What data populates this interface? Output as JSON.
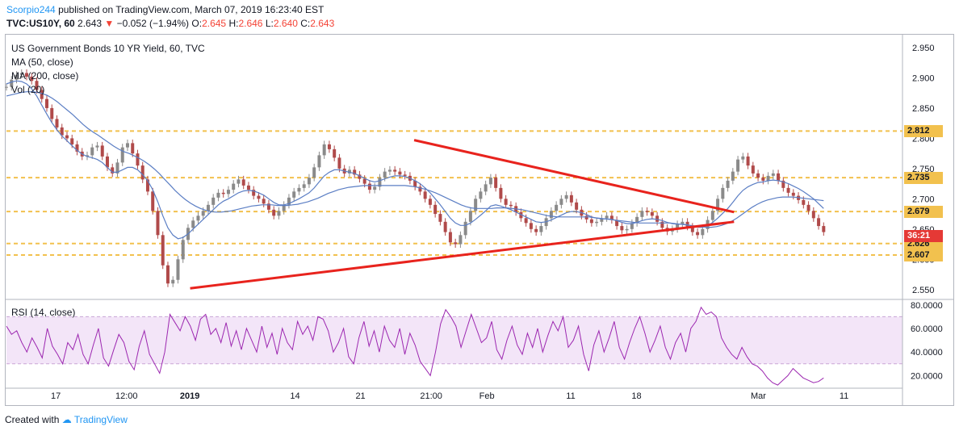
{
  "header": {
    "publisher": "Scorpio244",
    "published_text": "published on TradingView.com, March 07, 2019 16:23:40 EST",
    "symbol": "TVC:US10Y, 60",
    "last": "2.643",
    "change_arrow": "▼",
    "change": "−0.052 (−1.94%)",
    "ohlc": {
      "o_label": "O:",
      "o": "2.645",
      "h_label": "H:",
      "h": "2.646",
      "l_label": "L:",
      "l": "2.640",
      "c_label": "C:",
      "c": "2.643"
    }
  },
  "legend": {
    "title": "US Government Bonds 10 YR Yield, 60, TVC",
    "ma50": "MA (50, close)",
    "ma200": "MA (200, close)",
    "vol": "Vol (20)",
    "rsi": "RSI (14, close)"
  },
  "footer": {
    "created_with": "Created with",
    "brand": "TradingView"
  },
  "colors": {
    "candle_up": "#8a8a8a",
    "candle_down": "#b04a4a",
    "ma": "#5b7ec4",
    "levels": "#f2c14e",
    "trendline": "#e8231d",
    "rsi_line": "#9c27b0",
    "rsi_band": "#f3e5f8",
    "price_tag": "#e53935"
  },
  "chart_data": [
    {
      "type": "line",
      "title": "US Government Bonds 10 YR Yield, 60, TVC",
      "y_ticks": [
        "2.950",
        "2.900",
        "2.850",
        "2.800",
        "2.750",
        "2.700",
        "2.650",
        "2.600",
        "2.550"
      ],
      "ylim": [
        2.535,
        2.97
      ],
      "x_ticks": [
        "17",
        "12:00",
        "2019",
        "14",
        "21",
        "21:00",
        "Feb",
        "11",
        "18",
        "Mar",
        "11"
      ],
      "price_levels": [
        {
          "label": "2.812",
          "value": 2.812
        },
        {
          "label": "2.735",
          "value": 2.735
        },
        {
          "label": "2.679",
          "value": 2.679
        },
        {
          "label": "2.626",
          "value": 2.626
        },
        {
          "label": "2.607",
          "value": 2.607
        }
      ],
      "last_price_tag": "36:21",
      "trendlines": [
        {
          "name": "upper",
          "from": {
            "t": 0.455,
            "y": 2.797
          },
          "to": {
            "t": 0.812,
            "y": 2.678
          }
        },
        {
          "name": "lower",
          "from": {
            "t": 0.205,
            "y": 2.552
          },
          "to": {
            "t": 0.812,
            "y": 2.662
          }
        }
      ],
      "series": [
        {
          "name": "US10Y",
          "values": [
            2.885,
            2.897,
            2.905,
            2.908,
            2.902,
            2.895,
            2.88,
            2.865,
            2.85,
            2.832,
            2.818,
            2.805,
            2.8,
            2.79,
            2.778,
            2.77,
            2.772,
            2.785,
            2.788,
            2.77,
            2.752,
            2.742,
            2.76,
            2.785,
            2.792,
            2.775,
            2.755,
            2.732,
            2.712,
            2.68,
            2.64,
            2.59,
            2.56,
            2.566,
            2.6,
            2.632,
            2.652,
            2.664,
            2.672,
            2.68,
            2.69,
            2.702,
            2.71,
            2.708,
            2.715,
            2.725,
            2.732,
            2.722,
            2.715,
            2.705,
            2.7,
            2.692,
            2.682,
            2.672,
            2.68,
            2.69,
            2.702,
            2.712,
            2.718,
            2.724,
            2.735,
            2.752,
            2.772,
            2.79,
            2.782,
            2.768,
            2.75,
            2.742,
            2.748,
            2.74,
            2.733,
            2.725,
            2.715,
            2.72,
            2.735,
            2.745,
            2.748,
            2.745,
            2.74,
            2.738,
            2.73,
            2.72,
            2.712,
            2.7,
            2.69,
            2.675,
            2.662,
            2.645,
            2.628,
            2.625,
            2.64,
            2.662,
            2.68,
            2.7,
            2.712,
            2.724,
            2.735,
            2.718,
            2.7,
            2.69,
            2.688,
            2.678,
            2.668,
            2.66,
            2.65,
            2.645,
            2.655,
            2.668,
            2.68,
            2.69,
            2.7,
            2.706,
            2.694,
            2.682,
            2.672,
            2.666,
            2.66,
            2.662,
            2.668,
            2.672,
            2.665,
            2.655,
            2.648,
            2.65,
            2.66,
            2.67,
            2.68,
            2.678,
            2.672,
            2.662,
            2.652,
            2.646,
            2.65,
            2.658,
            2.662,
            2.654,
            2.645,
            2.64,
            2.65,
            2.665,
            2.68,
            2.7,
            2.718,
            2.73,
            2.745,
            2.765,
            2.77,
            2.755,
            2.742,
            2.735,
            2.73,
            2.738,
            2.742,
            2.73,
            2.718,
            2.71,
            2.705,
            2.698,
            2.69,
            2.68,
            2.668,
            2.655,
            2.645
          ]
        },
        {
          "name": "MA (50, close)",
          "values": [
            2.89,
            2.893,
            2.895,
            2.894,
            2.89,
            2.882,
            2.87,
            2.855,
            2.84,
            2.826,
            2.814,
            2.804,
            2.796,
            2.788,
            2.78,
            2.774,
            2.77,
            2.768,
            2.765,
            2.76,
            2.752,
            2.744,
            2.744,
            2.748,
            2.752,
            2.752,
            2.748,
            2.74,
            2.73,
            2.715,
            2.695,
            2.672,
            2.652,
            2.64,
            2.634,
            2.636,
            2.642,
            2.65,
            2.658,
            2.666,
            2.674,
            2.682,
            2.69,
            2.696,
            2.7,
            2.705,
            2.71,
            2.713,
            2.714,
            2.713,
            2.71,
            2.706,
            2.7,
            2.694,
            2.69,
            2.69,
            2.692,
            2.696,
            2.7,
            2.705,
            2.71,
            2.718,
            2.728,
            2.738,
            2.744,
            2.748,
            2.748,
            2.746,
            2.744,
            2.742,
            2.738,
            2.734,
            2.73,
            2.728,
            2.73,
            2.733,
            2.736,
            2.738,
            2.738,
            2.737,
            2.734,
            2.73,
            2.725,
            2.718,
            2.71,
            2.7,
            2.69,
            2.679,
            2.668,
            2.66,
            2.656,
            2.656,
            2.66,
            2.666,
            2.673,
            2.68,
            2.688,
            2.69,
            2.688,
            2.685,
            2.682,
            2.678,
            2.674,
            2.67,
            2.666,
            2.662,
            2.661,
            2.662,
            2.665,
            2.669,
            2.673,
            2.677,
            2.679,
            2.679,
            2.677,
            2.674,
            2.67,
            2.668,
            2.667,
            2.667,
            2.666,
            2.664,
            2.661,
            2.659,
            2.659,
            2.661,
            2.664,
            2.666,
            2.667,
            2.666,
            2.664,
            2.661,
            2.659,
            2.658,
            2.658,
            2.657,
            2.655,
            2.653,
            2.653,
            2.656,
            2.661,
            2.668,
            2.676,
            2.684,
            2.694,
            2.705,
            2.714,
            2.72,
            2.724,
            2.727,
            2.728,
            2.73,
            2.731,
            2.73,
            2.728,
            2.725,
            2.721,
            2.717,
            2.712,
            2.706,
            2.7,
            2.692,
            2.684
          ]
        },
        {
          "name": "MA (200, close)",
          "values": [
            2.87,
            2.872,
            2.874,
            2.876,
            2.877,
            2.877,
            2.876,
            2.874,
            2.871,
            2.866,
            2.86,
            2.853,
            2.846,
            2.839,
            2.831,
            2.823,
            2.816,
            2.81,
            2.805,
            2.799,
            2.793,
            2.787,
            2.782,
            2.778,
            2.775,
            2.771,
            2.767,
            2.762,
            2.756,
            2.749,
            2.741,
            2.732,
            2.723,
            2.714,
            2.706,
            2.699,
            2.693,
            2.688,
            2.684,
            2.681,
            2.679,
            2.678,
            2.678,
            2.679,
            2.68,
            2.682,
            2.684,
            2.686,
            2.688,
            2.689,
            2.69,
            2.69,
            2.69,
            2.689,
            2.689,
            2.689,
            2.69,
            2.691,
            2.693,
            2.695,
            2.698,
            2.701,
            2.705,
            2.709,
            2.712,
            2.715,
            2.717,
            2.719,
            2.72,
            2.721,
            2.722,
            2.722,
            2.722,
            2.722,
            2.722,
            2.722,
            2.722,
            2.722,
            2.722,
            2.721,
            2.72,
            2.718,
            2.716,
            2.713,
            2.71,
            2.706,
            2.702,
            2.698,
            2.694,
            2.69,
            2.687,
            2.685,
            2.684,
            2.684,
            2.684,
            2.684,
            2.685,
            2.685,
            2.685,
            2.684,
            2.683,
            2.682,
            2.68,
            2.678,
            2.676,
            2.674,
            2.672,
            2.671,
            2.67,
            2.67,
            2.67,
            2.67,
            2.67,
            2.67,
            2.67,
            2.669,
            2.668,
            2.667,
            2.666,
            2.665,
            2.664,
            2.663,
            2.662,
            2.661,
            2.66,
            2.66,
            2.66,
            2.66,
            2.66,
            2.66,
            2.66,
            2.659,
            2.658,
            2.657,
            2.656,
            2.655,
            2.654,
            2.653,
            2.653,
            2.654,
            2.656,
            2.659,
            2.663,
            2.668,
            2.674,
            2.68,
            2.686,
            2.691,
            2.695,
            2.698,
            2.7,
            2.702,
            2.703,
            2.703,
            2.703,
            2.702,
            2.701,
            2.7,
            2.699,
            2.698,
            2.697
          ]
        }
      ]
    },
    {
      "type": "line",
      "title": "RSI (14, close)",
      "y_ticks": [
        "80.0000",
        "60.0000",
        "40.0000",
        "20.0000"
      ],
      "ylim": [
        10,
        84
      ],
      "band": [
        30,
        70
      ],
      "series": [
        {
          "name": "RSI (14, close)",
          "values": [
            62,
            55,
            58,
            48,
            40,
            52,
            44,
            35,
            60,
            45,
            38,
            30,
            48,
            42,
            55,
            38,
            30,
            46,
            60,
            35,
            28,
            42,
            55,
            48,
            32,
            25,
            45,
            58,
            38,
            30,
            22,
            40,
            72,
            65,
            58,
            70,
            62,
            50,
            68,
            72,
            55,
            60,
            48,
            65,
            45,
            58,
            42,
            60,
            50,
            40,
            62,
            44,
            56,
            38,
            60,
            48,
            42,
            66,
            55,
            62,
            50,
            70,
            68,
            58,
            40,
            48,
            60,
            36,
            30,
            52,
            66,
            45,
            58,
            40,
            62,
            50,
            44,
            60,
            38,
            56,
            46,
            32,
            26,
            20,
            40,
            64,
            76,
            70,
            62,
            44,
            58,
            72,
            60,
            48,
            52,
            66,
            42,
            34,
            50,
            62,
            46,
            38,
            56,
            44,
            60,
            40,
            54,
            66,
            58,
            70,
            44,
            50,
            62,
            38,
            24,
            46,
            58,
            40,
            52,
            66,
            44,
            34,
            48,
            60,
            70,
            56,
            40,
            50,
            62,
            44,
            34,
            48,
            56,
            40,
            60,
            66,
            78,
            72,
            74,
            70,
            52,
            44,
            38,
            34,
            44,
            36,
            30,
            28,
            24,
            18,
            14,
            12,
            16,
            20,
            26,
            22,
            18,
            16,
            14,
            15,
            18
          ]
        }
      ]
    }
  ]
}
